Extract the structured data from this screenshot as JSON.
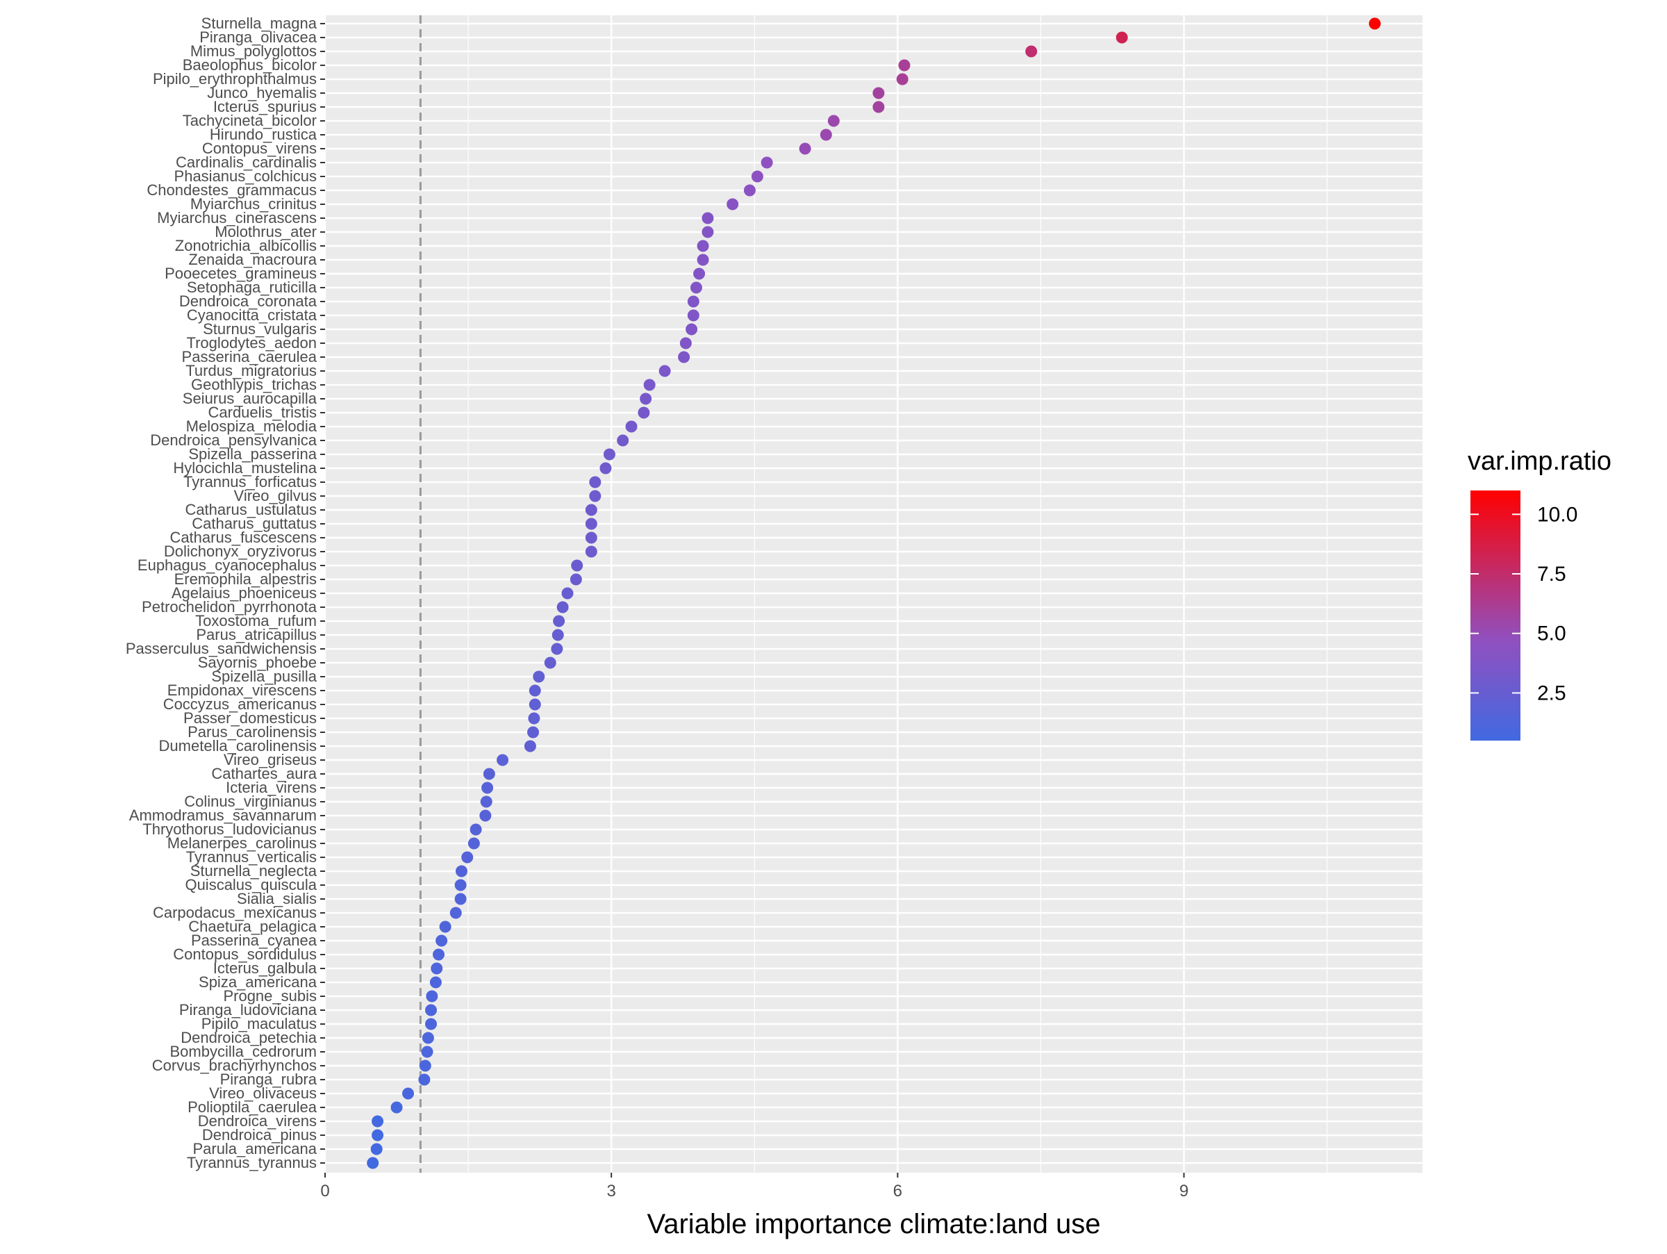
{
  "chart_data": {
    "type": "scatter",
    "title": "",
    "xlabel": "Variable importance climate:land use",
    "ylabel": "",
    "xlim": [
      0,
      11.5
    ],
    "x_ticks": [
      0,
      3,
      6,
      9
    ],
    "reference_line_x": 1,
    "grid": true,
    "legend": {
      "title": "var.imp.ratio",
      "placement": "right",
      "type": "colorbar",
      "ticks": [
        2.5,
        5.0,
        7.5,
        10.0
      ],
      "tick_labels": [
        "2.5",
        "5.0",
        "7.5",
        "10.0"
      ],
      "range": [
        0.5,
        11.0
      ],
      "low_color": "#4169e1",
      "mid_color": "#9050c0",
      "high_color": "#ff0000"
    },
    "points": [
      {
        "label": "Sturnella_magna",
        "x": 11.0
      },
      {
        "label": "Piranga_olivacea",
        "x": 8.35
      },
      {
        "label": "Mimus_polyglottos",
        "x": 7.4
      },
      {
        "label": "Baeolophus_bicolor",
        "x": 6.07
      },
      {
        "label": "Pipilo_erythrophthalmus",
        "x": 6.05
      },
      {
        "label": "Junco_hyemalis",
        "x": 5.8
      },
      {
        "label": "Icterus_spurius",
        "x": 5.8
      },
      {
        "label": "Tachycineta_bicolor",
        "x": 5.33
      },
      {
        "label": "Hirundo_rustica",
        "x": 5.25
      },
      {
        "label": "Contopus_virens",
        "x": 5.03
      },
      {
        "label": "Cardinalis_cardinalis",
        "x": 4.63
      },
      {
        "label": "Phasianus_colchicus",
        "x": 4.53
      },
      {
        "label": "Chondestes_grammacus",
        "x": 4.45
      },
      {
        "label": "Myiarchus_crinitus",
        "x": 4.27
      },
      {
        "label": "Myiarchus_cinerascens",
        "x": 4.01
      },
      {
        "label": "Molothrus_ater",
        "x": 4.01
      },
      {
        "label": "Zonotrichia_albicollis",
        "x": 3.96
      },
      {
        "label": "Zenaida_macroura",
        "x": 3.96
      },
      {
        "label": "Pooecetes_gramineus",
        "x": 3.92
      },
      {
        "label": "Setophaga_ruticilla",
        "x": 3.89
      },
      {
        "label": "Dendroica_coronata",
        "x": 3.86
      },
      {
        "label": "Cyanocitta_cristata",
        "x": 3.86
      },
      {
        "label": "Sturnus_vulgaris",
        "x": 3.84
      },
      {
        "label": "Troglodytes_aedon",
        "x": 3.78
      },
      {
        "label": "Passerina_caerulea",
        "x": 3.76
      },
      {
        "label": "Turdus_migratorius",
        "x": 3.56
      },
      {
        "label": "Geothlypis_trichas",
        "x": 3.4
      },
      {
        "label": "Seiurus_aurocapilla",
        "x": 3.36
      },
      {
        "label": "Carduelis_tristis",
        "x": 3.34
      },
      {
        "label": "Melospiza_melodia",
        "x": 3.21
      },
      {
        "label": "Dendroica_pensylvanica",
        "x": 3.12
      },
      {
        "label": "Spizella_passerina",
        "x": 2.98
      },
      {
        "label": "Hylocichla_mustelina",
        "x": 2.94
      },
      {
        "label": "Tyrannus_forficatus",
        "x": 2.83
      },
      {
        "label": "Vireo_gilvus",
        "x": 2.83
      },
      {
        "label": "Catharus_ustulatus",
        "x": 2.79
      },
      {
        "label": "Catharus_guttatus",
        "x": 2.79
      },
      {
        "label": "Catharus_fuscescens",
        "x": 2.79
      },
      {
        "label": "Dolichonyx_oryzivorus",
        "x": 2.79
      },
      {
        "label": "Euphagus_cyanocephalus",
        "x": 2.64
      },
      {
        "label": "Eremophila_alpestris",
        "x": 2.63
      },
      {
        "label": "Agelaius_phoeniceus",
        "x": 2.54
      },
      {
        "label": "Petrochelidon_pyrrhonota",
        "x": 2.49
      },
      {
        "label": "Toxostoma_rufum",
        "x": 2.45
      },
      {
        "label": "Parus_atricapillus",
        "x": 2.44
      },
      {
        "label": "Passerculus_sandwichensis",
        "x": 2.43
      },
      {
        "label": "Sayornis_phoebe",
        "x": 2.36
      },
      {
        "label": "Spizella_pusilla",
        "x": 2.24
      },
      {
        "label": "Empidonax_virescens",
        "x": 2.2
      },
      {
        "label": "Coccyzus_americanus",
        "x": 2.2
      },
      {
        "label": "Passer_domesticus",
        "x": 2.19
      },
      {
        "label": "Parus_carolinensis",
        "x": 2.18
      },
      {
        "label": "Dumetella_carolinensis",
        "x": 2.15
      },
      {
        "label": "Vireo_griseus",
        "x": 1.86
      },
      {
        "label": "Cathartes_aura",
        "x": 1.72
      },
      {
        "label": "Icteria_virens",
        "x": 1.7
      },
      {
        "label": "Colinus_virginianus",
        "x": 1.69
      },
      {
        "label": "Ammodramus_savannarum",
        "x": 1.68
      },
      {
        "label": "Thryothorus_ludovicianus",
        "x": 1.58
      },
      {
        "label": "Melanerpes_carolinus",
        "x": 1.56
      },
      {
        "label": "Tyrannus_verticalis",
        "x": 1.49
      },
      {
        "label": "Sturnella_neglecta",
        "x": 1.43
      },
      {
        "label": "Quiscalus_quiscula",
        "x": 1.42
      },
      {
        "label": "Sialia_sialis",
        "x": 1.42
      },
      {
        "label": "Carpodacus_mexicanus",
        "x": 1.37
      },
      {
        "label": "Chaetura_pelagica",
        "x": 1.26
      },
      {
        "label": "Passerina_cyanea",
        "x": 1.22
      },
      {
        "label": "Contopus_sordidulus",
        "x": 1.19
      },
      {
        "label": "Icterus_galbula",
        "x": 1.17
      },
      {
        "label": "Spiza_americana",
        "x": 1.16
      },
      {
        "label": "Progne_subis",
        "x": 1.12
      },
      {
        "label": "Piranga_ludoviciana",
        "x": 1.11
      },
      {
        "label": "Pipilo_maculatus",
        "x": 1.11
      },
      {
        "label": "Dendroica_petechia",
        "x": 1.08
      },
      {
        "label": "Bombycilla_cedrorum",
        "x": 1.07
      },
      {
        "label": "Corvus_brachyrhynchos",
        "x": 1.05
      },
      {
        "label": "Piranga_rubra",
        "x": 1.04
      },
      {
        "label": "Vireo_olivaceus",
        "x": 0.87
      },
      {
        "label": "Polioptila_caerulea",
        "x": 0.75
      },
      {
        "label": "Dendroica_virens",
        "x": 0.55
      },
      {
        "label": "Dendroica_pinus",
        "x": 0.55
      },
      {
        "label": "Parula_americana",
        "x": 0.54
      },
      {
        "label": "Tyrannus_tyrannus",
        "x": 0.5
      }
    ]
  }
}
